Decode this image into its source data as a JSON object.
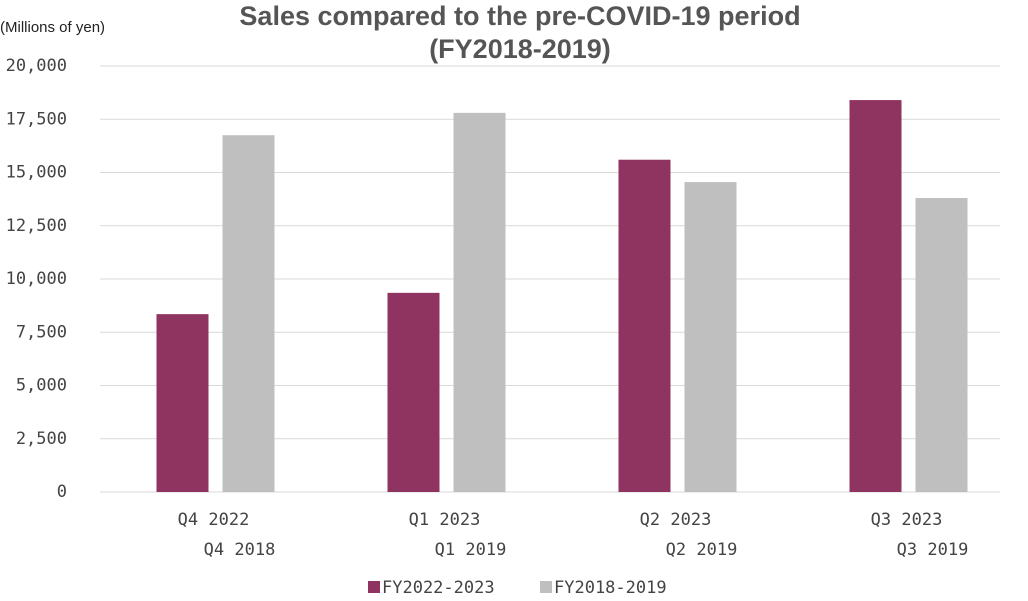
{
  "chart_data": {
    "type": "bar",
    "title": [
      "Sales compared to the pre-COVID-19 period",
      "(FY2018-2019)"
    ],
    "y_axis_label": "(Millions of yen)",
    "categories": [
      [
        "Q4 2022",
        "Q4 2018"
      ],
      [
        "Q1 2023",
        "Q1 2019"
      ],
      [
        "Q2 2023",
        "Q2 2019"
      ],
      [
        "Q3 2023",
        "Q3 2019"
      ]
    ],
    "series": [
      {
        "name": "FY2022-2023",
        "color": "#8f3360",
        "values": [
          8350,
          9350,
          15600,
          18400
        ]
      },
      {
        "name": "FY2018-2019",
        "color": "#bfbfbf",
        "values": [
          16750,
          17800,
          14550,
          13800
        ]
      }
    ],
    "ylim": [
      0,
      20000
    ],
    "yticks": [
      0,
      {
        "value": 2500,
        "label": "2,500"
      },
      {
        "value": 5000,
        "label": "5,000"
      },
      {
        "value": 7500,
        "label": "7,500"
      },
      {
        "value": 10000,
        "label": "10,000"
      },
      {
        "value": 12500,
        "label": "12,500"
      },
      {
        "value": 15000,
        "label": "15,000"
      },
      {
        "value": 17500,
        "label": "17,500"
      },
      {
        "value": 20000,
        "label": "20,000"
      }
    ],
    "grid": true,
    "legend": "bottom"
  }
}
